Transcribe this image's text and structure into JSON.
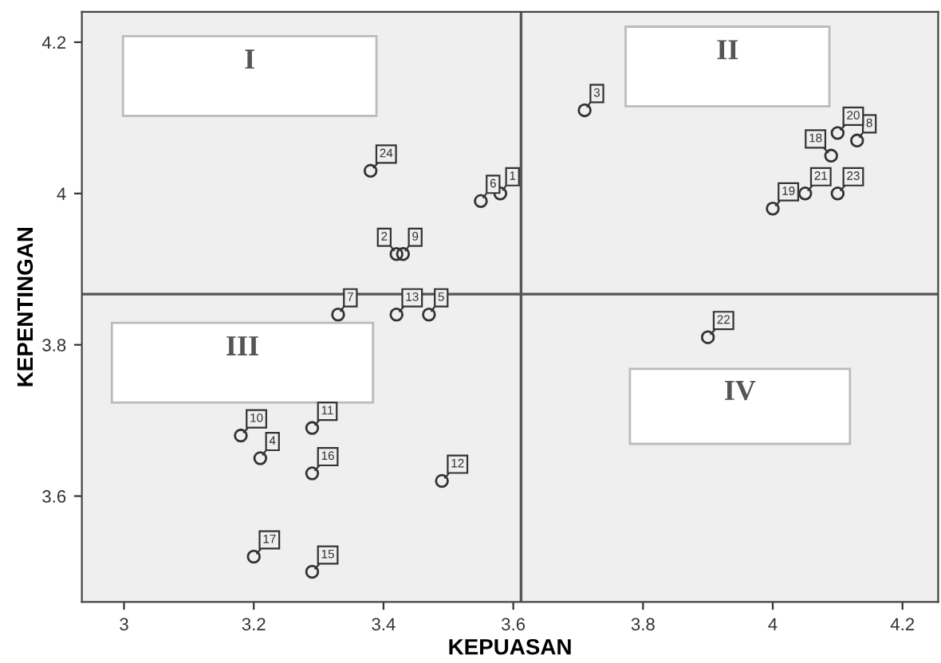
{
  "chart_data": {
    "type": "scatter",
    "xlabel": "KEPUASAN",
    "ylabel": "KEPENTINGAN",
    "x": [
      3.58,
      3.42,
      3.71,
      3.21,
      3.47,
      3.55,
      3.33,
      4.13,
      3.43,
      3.18,
      3.29,
      3.49,
      3.42,
      3.29,
      3.29,
      3.2,
      4.09,
      4.0,
      4.1,
      4.05,
      3.9,
      4.1,
      3.38
    ],
    "series": [
      {
        "color": "#333333",
        "values": [
          4.0,
          3.92,
          4.11,
          3.65,
          3.84,
          3.99,
          3.84,
          4.07,
          3.92,
          3.68,
          3.69,
          3.62,
          3.84,
          3.5,
          3.63,
          3.52,
          4.05,
          3.98,
          4.08,
          4.0,
          3.81,
          4.0,
          4.03
        ]
      }
    ],
    "marker": "circle",
    "grid": false,
    "legend": false,
    "xlim": [
      2.935,
      4.255
    ],
    "xticks": [
      3,
      3.2,
      3.4,
      3.6,
      3.8,
      4,
      4.2
    ],
    "ylim": [
      3.46,
      4.24
    ],
    "yticks": [
      3.6,
      3.8,
      4,
      4.2
    ],
    "ref_lines": [
      {
        "axis": "x",
        "value": 3.612,
        "color": "#555555"
      },
      {
        "axis": "y",
        "value": 3.867,
        "color": "#555555"
      }
    ],
    "annotations": [
      "I",
      "II",
      "III",
      "IV",
      {
        "text": "1",
        "x": 3.58,
        "y": 4.0
      },
      {
        "text": "2",
        "x": 3.42,
        "y": 3.92
      },
      {
        "text": "3",
        "x": 3.71,
        "y": 4.11
      },
      {
        "text": "4",
        "x": 3.21,
        "y": 3.65
      },
      {
        "text": "5",
        "x": 3.47,
        "y": 3.84
      },
      {
        "text": "6",
        "x": 3.55,
        "y": 3.99
      },
      {
        "text": "7",
        "x": 3.33,
        "y": 3.84
      },
      {
        "text": "8",
        "x": 4.13,
        "y": 4.07
      },
      {
        "text": "9",
        "x": 3.43,
        "y": 3.92
      },
      {
        "text": "10",
        "x": 3.18,
        "y": 3.68
      },
      {
        "text": "11",
        "x": 3.29,
        "y": 3.69
      },
      {
        "text": "12",
        "x": 3.49,
        "y": 3.62
      },
      {
        "text": "13",
        "x": 3.42,
        "y": 3.84
      },
      {
        "text": "15",
        "x": 3.29,
        "y": 3.5
      },
      {
        "text": "16",
        "x": 3.29,
        "y": 3.63
      },
      {
        "text": "17",
        "x": 3.2,
        "y": 3.52
      },
      {
        "text": "18",
        "x": 4.09,
        "y": 4.05
      },
      {
        "text": "19",
        "x": 4.0,
        "y": 3.98
      },
      {
        "text": "20",
        "x": 4.1,
        "y": 4.08
      },
      {
        "text": "21",
        "x": 4.05,
        "y": 4.0
      },
      {
        "text": "22",
        "x": 3.9,
        "y": 3.81
      },
      {
        "text": "23",
        "x": 4.1,
        "y": 4.0
      },
      {
        "text": "24",
        "x": 3.38,
        "y": 4.03
      }
    ]
  }
}
